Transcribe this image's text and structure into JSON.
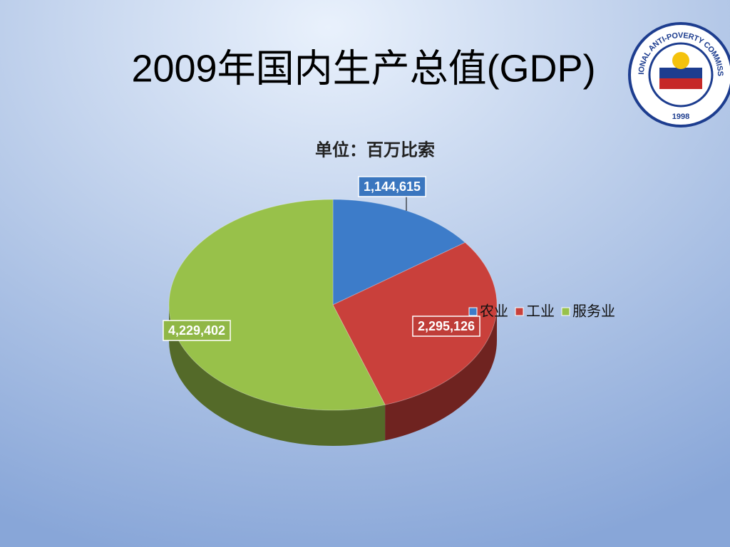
{
  "chart_data": {
    "type": "pie",
    "title": "2009年国内生产总值(GDP)",
    "subtitle": "单位：百万比索",
    "categories": [
      "农业",
      "工业",
      "服务业"
    ],
    "values": [
      1144615,
      2295126,
      4229402
    ],
    "value_labels": [
      "1,144,615",
      "2,295,126",
      "4,229,402"
    ],
    "colors": [
      "#3d7cc9",
      "#c9403b",
      "#98c14a"
    ],
    "legend": "right"
  },
  "logo": {
    "text": "NATIONAL ANTI-POVERTY COMMISSION",
    "year": "1998"
  }
}
